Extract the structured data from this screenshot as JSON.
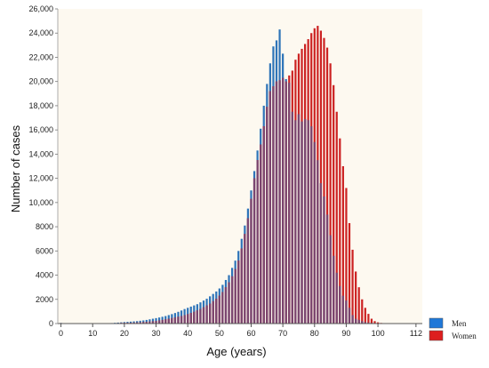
{
  "chart_data": {
    "type": "bar",
    "title": "",
    "xlabel": "Age (years)",
    "ylabel": "Number of cases",
    "xlim": [
      -1,
      114
    ],
    "ylim": [
      0,
      26000
    ],
    "x_ticks": [
      0,
      10,
      20,
      30,
      40,
      50,
      60,
      70,
      80,
      90,
      100,
      112
    ],
    "y_ticks": [
      "0",
      "2000",
      "4000",
      "6000",
      "8000",
      "10,000",
      "12,000",
      "14,000",
      "16,000",
      "18,000",
      "20,000",
      "22,000",
      "24,000",
      "26,000"
    ],
    "grid": false,
    "legend_position": "bottom-right",
    "background_color": "#fdf9f0",
    "overlap_color": "#7a4670",
    "x": [
      0,
      1,
      2,
      3,
      4,
      5,
      6,
      7,
      8,
      9,
      10,
      11,
      12,
      13,
      14,
      15,
      16,
      17,
      18,
      19,
      20,
      21,
      22,
      23,
      24,
      25,
      26,
      27,
      28,
      29,
      30,
      31,
      32,
      33,
      34,
      35,
      36,
      37,
      38,
      39,
      40,
      41,
      42,
      43,
      44,
      45,
      46,
      47,
      48,
      49,
      50,
      51,
      52,
      53,
      54,
      55,
      56,
      57,
      58,
      59,
      60,
      61,
      62,
      63,
      64,
      65,
      66,
      67,
      68,
      69,
      70,
      71,
      72,
      73,
      74,
      75,
      76,
      77,
      78,
      79,
      80,
      81,
      82,
      83,
      84,
      85,
      86,
      87,
      88,
      89,
      90,
      91,
      92,
      93,
      94,
      95,
      96,
      97,
      98,
      99,
      100,
      101,
      102,
      103,
      104,
      105,
      106,
      107,
      108,
      109,
      110,
      111,
      112
    ],
    "series": [
      {
        "name": "Men",
        "color": "#2e74b8",
        "values": [
          50,
          20,
          15,
          10,
          10,
          10,
          10,
          10,
          10,
          15,
          15,
          15,
          20,
          20,
          25,
          30,
          40,
          60,
          80,
          100,
          120,
          140,
          160,
          180,
          200,
          230,
          260,
          300,
          350,
          400,
          450,
          500,
          560,
          620,
          700,
          780,
          870,
          970,
          1080,
          1200,
          1300,
          1400,
          1500,
          1600,
          1750,
          1900,
          2050,
          2250,
          2450,
          2650,
          2900,
          3200,
          3600,
          4000,
          4600,
          5200,
          6000,
          7000,
          8100,
          9500,
          11000,
          12600,
          14300,
          16100,
          18000,
          19800,
          21500,
          22900,
          23400,
          24300,
          22300,
          20200,
          19900,
          17500,
          16800,
          17300,
          16700,
          16900,
          16800,
          16300,
          15000,
          13500,
          11600,
          10500,
          9000,
          7300,
          5600,
          4200,
          3100,
          2300,
          1900,
          1300,
          700,
          400,
          300,
          200,
          120,
          80,
          50,
          30,
          20,
          15,
          10,
          5,
          5,
          0,
          0,
          0,
          0,
          0,
          0,
          0,
          0
        ]
      },
      {
        "name": "Women",
        "color": "#cc2222",
        "values": [
          40,
          15,
          10,
          10,
          5,
          5,
          5,
          5,
          5,
          10,
          10,
          10,
          10,
          15,
          15,
          20,
          25,
          30,
          40,
          50,
          55,
          60,
          70,
          80,
          90,
          100,
          120,
          140,
          160,
          190,
          220,
          260,
          300,
          350,
          400,
          450,
          500,
          560,
          620,
          700,
          780,
          870,
          970,
          1080,
          1200,
          1350,
          1500,
          1650,
          1850,
          2050,
          2300,
          2600,
          3000,
          3400,
          3900,
          4500,
          5200,
          6200,
          7400,
          8700,
          10300,
          12000,
          13500,
          14800,
          16300,
          17900,
          19200,
          19600,
          20000,
          20100,
          20300,
          20000,
          20500,
          20900,
          21800,
          22300,
          22700,
          23100,
          23500,
          24000,
          24400,
          24600,
          24200,
          23600,
          22800,
          21500,
          19700,
          17500,
          15300,
          13000,
          11200,
          8300,
          6100,
          4300,
          3000,
          2000,
          1300,
          800,
          400,
          200,
          100,
          50,
          30,
          20,
          10,
          5,
          0,
          0,
          0,
          0,
          0,
          0,
          0
        ]
      }
    ]
  },
  "legend": {
    "items": [
      {
        "label": "Men",
        "color": "#1f78d8"
      },
      {
        "label": "Women",
        "color": "#dd1e1e"
      }
    ]
  }
}
